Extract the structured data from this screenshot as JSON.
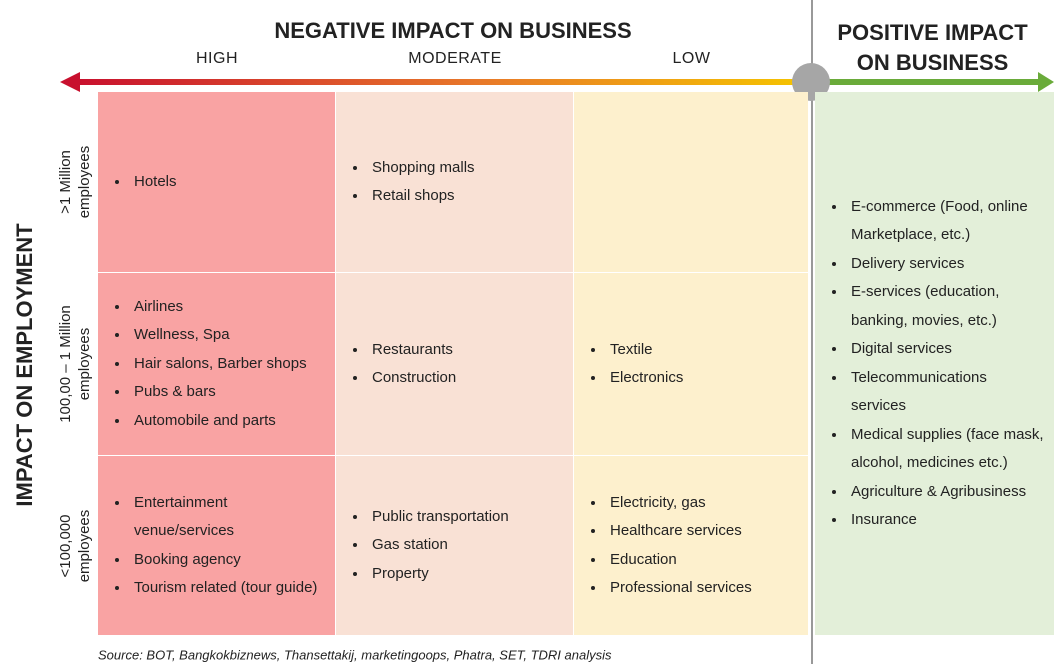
{
  "title": "NEGATIVE IMPACT ON BUSINESS",
  "columns": [
    "HIGH",
    "MODERATE",
    "LOW"
  ],
  "positive_title": [
    "POSITIVE IMPACT",
    "ON BUSINESS"
  ],
  "y_axis_title": "IMPACT ON EMPLOYMENT",
  "rows": [
    {
      "label": [
        ">1 Million",
        "employees"
      ],
      "cells": [
        [
          "Hotels"
        ],
        [
          "Shopping malls",
          "Retail shops"
        ],
        []
      ]
    },
    {
      "label": [
        "100,00 – 1 Million",
        "employees"
      ],
      "cells": [
        [
          "Airlines",
          "Wellness, Spa",
          "Hair salons, Barber shops",
          "Pubs & bars",
          "Automobile and parts"
        ],
        [
          "Restaurants",
          "Construction"
        ],
        [
          "Textile",
          "Electronics"
        ]
      ]
    },
    {
      "label": [
        "<100,000",
        "employees"
      ],
      "cells": [
        [
          "Entertainment venue/services",
          "Booking agency",
          "Tourism related (tour guide)"
        ],
        [
          "Public transportation",
          "Gas station",
          "Property"
        ],
        [
          "Electricity, gas",
          "Healthcare services",
          "Education",
          "Professional services"
        ]
      ]
    }
  ],
  "positive_items": [
    "E-commerce (Food, online Marketplace, etc.)",
    "Delivery services",
    "E-services (education, banking, movies, etc.)",
    "Digital services",
    "Telecommunications services",
    "Medical supplies (face mask, alcohol, medicines etc.)",
    "Agriculture & Agribusiness",
    "Insurance"
  ],
  "source": "Source: BOT, Bangkokbiznews, Thansettakij, marketingoops, Phatra, SET, TDRI analysis"
}
